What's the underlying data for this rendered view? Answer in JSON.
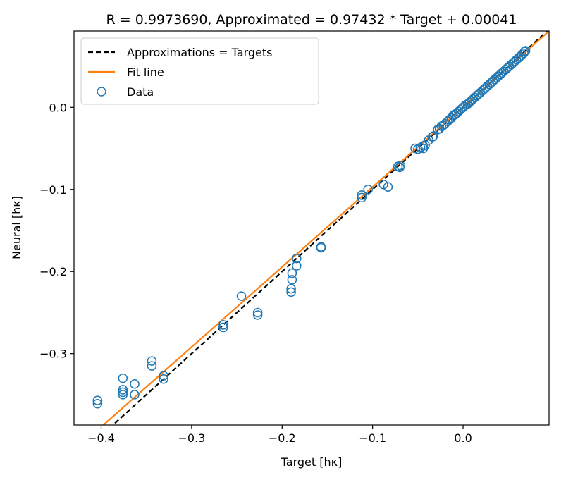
{
  "chart_data": {
    "type": "scatter",
    "title": "R = 0.9973690, Approximated = 0.97432 * Target + 0.00041",
    "xlabel": "Target [hκ]",
    "ylabel": "Neural [hκ]",
    "xlim": [
      -0.43,
      0.095
    ],
    "ylim": [
      -0.387,
      0.093
    ],
    "xticks": [
      -0.4,
      -0.3,
      -0.2,
      -0.1,
      0.0
    ],
    "xtick_labels": [
      "−0.4",
      "−0.3",
      "−0.2",
      "−0.1",
      "0.0"
    ],
    "yticks": [
      0.0,
      -0.1,
      -0.2,
      -0.3
    ],
    "ytick_labels": [
      "0.0",
      "−0.1",
      "−0.2",
      "−0.3"
    ],
    "grid": false,
    "legend_position": "top-left",
    "series": [
      {
        "name": "Approximations = Targets",
        "kind": "line",
        "style": "dashed",
        "color": "#000000",
        "slope": 1.0,
        "intercept": 0.0
      },
      {
        "name": "Fit line",
        "kind": "line",
        "style": "solid",
        "color": "#ff7f0e",
        "slope": 0.97432,
        "intercept": 0.00041
      },
      {
        "name": "Data",
        "kind": "scatter",
        "marker": "open-circle",
        "color": "#1f77b4",
        "points": [
          [
            -0.404,
            -0.357
          ],
          [
            -0.404,
            -0.361
          ],
          [
            -0.376,
            -0.33
          ],
          [
            -0.376,
            -0.344
          ],
          [
            -0.376,
            -0.347
          ],
          [
            -0.376,
            -0.35
          ],
          [
            -0.363,
            -0.337
          ],
          [
            -0.363,
            -0.35
          ],
          [
            -0.344,
            -0.309
          ],
          [
            -0.344,
            -0.315
          ],
          [
            -0.331,
            -0.327
          ],
          [
            -0.331,
            -0.331
          ],
          [
            -0.265,
            -0.265
          ],
          [
            -0.265,
            -0.268
          ],
          [
            -0.245,
            -0.23
          ],
          [
            -0.227,
            -0.25
          ],
          [
            -0.227,
            -0.253
          ],
          [
            -0.19,
            -0.221
          ],
          [
            -0.19,
            -0.225
          ],
          [
            -0.189,
            -0.202
          ],
          [
            -0.189,
            -0.21
          ],
          [
            -0.184,
            -0.184
          ],
          [
            -0.184,
            -0.193
          ],
          [
            -0.157,
            -0.17
          ],
          [
            -0.157,
            -0.171
          ],
          [
            -0.112,
            -0.107
          ],
          [
            -0.112,
            -0.11
          ],
          [
            -0.105,
            -0.1
          ],
          [
            -0.088,
            -0.094
          ],
          [
            -0.083,
            -0.097
          ],
          [
            -0.072,
            -0.072
          ],
          [
            -0.07,
            -0.073
          ],
          [
            -0.069,
            -0.071
          ],
          [
            -0.053,
            -0.05
          ],
          [
            -0.05,
            -0.051
          ],
          [
            -0.047,
            -0.049
          ],
          [
            -0.044,
            -0.047
          ],
          [
            -0.044,
            -0.05
          ],
          [
            -0.042,
            -0.046
          ],
          [
            -0.038,
            -0.04
          ],
          [
            -0.034,
            -0.036
          ],
          [
            -0.033,
            -0.035
          ],
          [
            -0.028,
            -0.027
          ],
          [
            -0.026,
            -0.026
          ],
          [
            -0.024,
            -0.023
          ],
          [
            -0.022,
            -0.022
          ],
          [
            -0.02,
            -0.02
          ],
          [
            -0.017,
            -0.017
          ],
          [
            -0.015,
            -0.015
          ],
          [
            -0.013,
            -0.013
          ],
          [
            -0.011,
            -0.01
          ],
          [
            -0.009,
            -0.009
          ],
          [
            -0.007,
            -0.007
          ],
          [
            -0.005,
            -0.005
          ],
          [
            -0.003,
            -0.003
          ],
          [
            -0.001,
            -0.001
          ],
          [
            0.001,
            0.001
          ],
          [
            0.003,
            0.003
          ],
          [
            0.005,
            0.004
          ],
          [
            0.007,
            0.006
          ],
          [
            0.009,
            0.008
          ],
          [
            0.011,
            0.01
          ],
          [
            0.013,
            0.012
          ],
          [
            0.015,
            0.014
          ],
          [
            0.017,
            0.016
          ],
          [
            0.019,
            0.018
          ],
          [
            0.021,
            0.02
          ],
          [
            0.023,
            0.022
          ],
          [
            0.025,
            0.024
          ],
          [
            0.027,
            0.026
          ],
          [
            0.029,
            0.028
          ],
          [
            0.031,
            0.03
          ],
          [
            0.033,
            0.032
          ],
          [
            0.035,
            0.034
          ],
          [
            0.037,
            0.036
          ],
          [
            0.039,
            0.038
          ],
          [
            0.041,
            0.04
          ],
          [
            0.043,
            0.042
          ],
          [
            0.045,
            0.044
          ],
          [
            0.047,
            0.046
          ],
          [
            0.049,
            0.048
          ],
          [
            0.051,
            0.05
          ],
          [
            0.053,
            0.052
          ],
          [
            0.055,
            0.054
          ],
          [
            0.057,
            0.056
          ],
          [
            0.059,
            0.058
          ],
          [
            0.061,
            0.06
          ],
          [
            0.063,
            0.062
          ],
          [
            0.065,
            0.064
          ],
          [
            0.067,
            0.066
          ],
          [
            0.068,
            0.068
          ],
          [
            0.069,
            0.069
          ]
        ]
      }
    ]
  }
}
